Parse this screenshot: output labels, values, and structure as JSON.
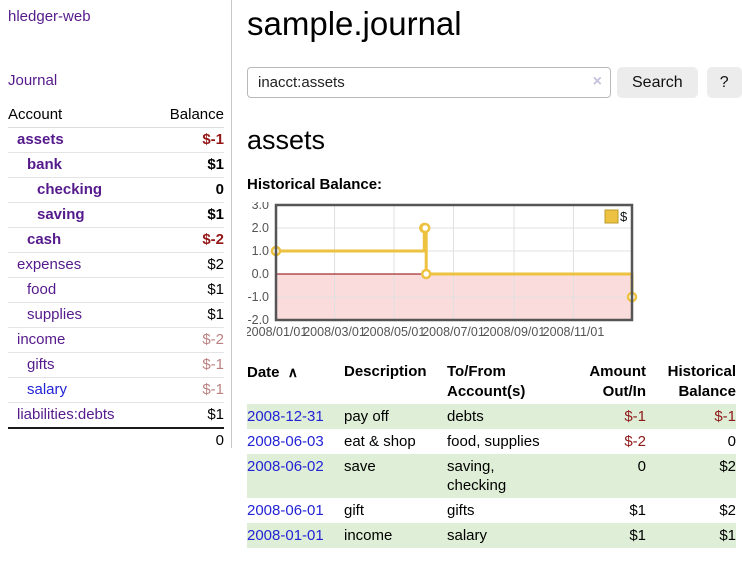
{
  "app": {
    "brand": "hledger-web"
  },
  "nav": {
    "journal": "Journal"
  },
  "sidebar": {
    "columns": {
      "account": "Account",
      "balance": "Balance"
    },
    "accounts": [
      {
        "name": "assets",
        "balance": "$-1",
        "indent": 1,
        "bold": true,
        "negative": "strong"
      },
      {
        "name": "bank",
        "balance": "$1",
        "indent": 2,
        "bold": true
      },
      {
        "name": "checking",
        "balance": "0",
        "indent": 3,
        "bold": true
      },
      {
        "name": "saving",
        "balance": "$1",
        "indent": 3,
        "bold": true
      },
      {
        "name": "cash",
        "balance": "$-2",
        "indent": 2,
        "bold": true,
        "negative": "strong"
      },
      {
        "name": "expenses",
        "balance": "$2",
        "indent": 1
      },
      {
        "name": "food",
        "balance": "$1",
        "indent": 2
      },
      {
        "name": "supplies",
        "balance": "$1",
        "indent": 2
      },
      {
        "name": "income",
        "balance": "$-2",
        "indent": 1,
        "negative": "weak"
      },
      {
        "name": "gifts",
        "balance": "$-1",
        "indent": 2,
        "negative": "weak"
      },
      {
        "name": "salary",
        "balance": "$-1",
        "indent": 2,
        "negative": "weak",
        "link_style": "blue"
      },
      {
        "name": "liabilities:debts",
        "balance": "$1",
        "indent": 1
      }
    ],
    "total": "0"
  },
  "page": {
    "title": "sample.journal",
    "account_heading": "assets",
    "chart_label": "Historical Balance:"
  },
  "search": {
    "value": "inacct:assets",
    "clear_icon": "×",
    "search_button": "Search",
    "help_button": "?"
  },
  "chart_data": {
    "type": "line",
    "title": "Historical Balance:",
    "step": true,
    "x_type": "date",
    "x_range": [
      "2008-01-01",
      "2008-12-31"
    ],
    "ylim": [
      -2,
      3
    ],
    "ytick_values": [
      3,
      2,
      1,
      0,
      -1,
      -2
    ],
    "ytick_labels": [
      "3.0",
      "2.0",
      "1.0",
      "0.0",
      "-1.0",
      "-2.0"
    ],
    "xticks": [
      {
        "label": "2008/01/01",
        "date": "2008-01-01"
      },
      {
        "label": "2008/03/01",
        "date": "2008-03-01"
      },
      {
        "label": "2008/05/01",
        "date": "2008-05-01"
      },
      {
        "label": "2008/07/01",
        "date": "2008-07-01"
      },
      {
        "label": "2008/09/01",
        "date": "2008-09-01"
      },
      {
        "label": "2008/11/01",
        "date": "2008-11-01"
      }
    ],
    "series": [
      {
        "name": "$",
        "color": "#edc240",
        "points": [
          [
            "2008-01-01",
            1
          ],
          [
            "2008-06-01",
            2
          ],
          [
            "2008-06-02",
            2
          ],
          [
            "2008-06-03",
            0
          ],
          [
            "2008-12-31",
            -1
          ]
        ]
      }
    ],
    "legend_position": "top-right",
    "grid": true,
    "grid_color": "#e0e0e0",
    "border_color": "#555555",
    "negative_region_fill": "#fbdcdc",
    "zero_line_color": "#8b0000",
    "tick_label_color": "#545454",
    "legend_swatch_border": "#bb9a2a"
  },
  "register": {
    "sort_indicator": "∧",
    "columns": [
      {
        "label": "Date",
        "align": "left",
        "sorted": true
      },
      {
        "label": "Description",
        "align": "left"
      },
      {
        "label": "To/From Account(s)",
        "align": "left"
      },
      {
        "label": "Amount Out/In",
        "align": "right"
      },
      {
        "label": "Historical Balance",
        "align": "right"
      }
    ],
    "rows": [
      {
        "date": "2008-12-31",
        "description": "pay off",
        "accounts": "debts",
        "amount": "$-1",
        "amount_negative": true,
        "balance": "$-1",
        "balance_negative": true
      },
      {
        "date": "2008-06-03",
        "description": "eat & shop",
        "accounts": "food, supplies",
        "amount": "$-2",
        "amount_negative": true,
        "balance": "0",
        "balance_negative": false
      },
      {
        "date": "2008-06-02",
        "description": "save",
        "accounts": "saving,\nchecking",
        "amount": "0",
        "amount_negative": false,
        "balance": "$2",
        "balance_negative": false
      },
      {
        "date": "2008-06-01",
        "description": "gift",
        "accounts": "gifts",
        "amount": "$1",
        "amount_negative": false,
        "balance": "$2",
        "balance_negative": false
      },
      {
        "date": "2008-01-01",
        "description": "income",
        "accounts": "salary",
        "amount": "$1",
        "amount_negative": false,
        "balance": "$1",
        "balance_negative": false
      }
    ]
  }
}
